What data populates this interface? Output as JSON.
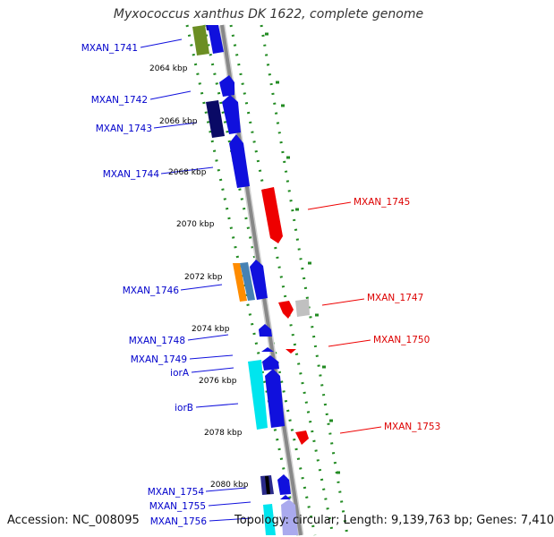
{
  "title": "Myxococcus xanthus DK 1622, complete genome",
  "footer": {
    "accession": "Accession: NC_008095",
    "summary": "Topology: circular; Length: 9,139,763 bp; Genes: 7,410"
  },
  "ticks": [
    "2064 kbp",
    "2066 kbp",
    "2068 kbp",
    "2070 kbp",
    "2072 kbp",
    "2074 kbp",
    "2076 kbp",
    "2078 kbp",
    "2080 kbp"
  ],
  "genes_left": [
    "MXAN_1741",
    "MXAN_1742",
    "MXAN_1743",
    "MXAN_1744",
    "MXAN_1746",
    "MXAN_1748",
    "MXAN_1749",
    "iorA",
    "iorB",
    "MXAN_1754",
    "MXAN_1755",
    "MXAN_1756"
  ],
  "genes_right": [
    "MXAN_1745",
    "MXAN_1747",
    "MXAN_1750",
    "MXAN_1753"
  ],
  "colors": {
    "forward_label": "#0000cc",
    "reverse_label": "#dd0000",
    "backbone": "#888888",
    "guide_dots": "#228b22"
  }
}
